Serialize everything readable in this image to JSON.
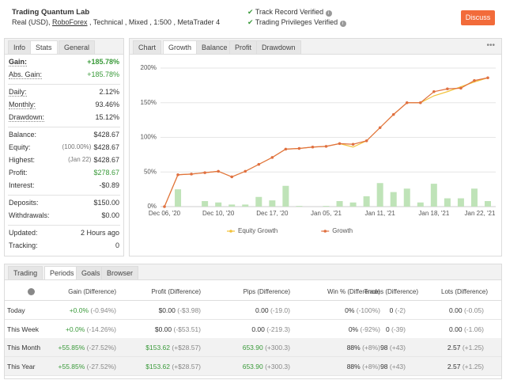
{
  "header": {
    "title": "Trading Quantum Lab",
    "subtitle_parts": [
      "Real (USD), ",
      "RoboForex",
      " , Technical , Mixed , 1:500 , MetaTrader 4"
    ],
    "verified": [
      "Track Record Verified",
      "Trading Privileges Verified"
    ],
    "button": "Discuss"
  },
  "stats_panel": {
    "tabs": [
      "Info",
      "Stats",
      "General"
    ],
    "active_tab": 1,
    "groups": [
      [
        {
          "label": "Gain:",
          "value": "+185.78%",
          "color": "#3a9a3a",
          "bold": true
        },
        {
          "label": "Abs. Gain:",
          "value": "+185.78%",
          "color": "#3a9a3a"
        }
      ],
      [
        {
          "label": "Daily:",
          "value": "2.12%"
        },
        {
          "label": "Monthly:",
          "value": "93.46%"
        },
        {
          "label": "Drawdown:",
          "value": "15.12%"
        }
      ],
      [
        {
          "label": "Balance:",
          "value": "$428.67"
        },
        {
          "label": "Equity:",
          "note": "(100.00%)",
          "value": "$428.67"
        },
        {
          "label": "Highest:",
          "note": "(Jan 22)",
          "value": "$428.67"
        },
        {
          "label": "Profit:",
          "value": "$278.67",
          "color": "#3a9a3a"
        },
        {
          "label": "Interest:",
          "value": "-$0.89"
        }
      ],
      [
        {
          "label": "Deposits:",
          "value": "$150.00"
        },
        {
          "label": "Withdrawals:",
          "value": "$0.00"
        }
      ],
      [
        {
          "label": "Updated:",
          "value": "2 Hours ago"
        },
        {
          "label": "Tracking:",
          "value": "0"
        }
      ]
    ]
  },
  "chart_panel": {
    "tabs": [
      "Chart",
      "Growth",
      "Balance",
      "Profit",
      "Drawdown"
    ],
    "active_tab": 1
  },
  "chart": {
    "type": "line",
    "categories": [
      "Dec 06, '20",
      null,
      null,
      null,
      "Dec 10, '20",
      null,
      null,
      null,
      "Dec 17, '20",
      null,
      null,
      null,
      "Jan 05, '21",
      null,
      null,
      null,
      "Jan 11, '21",
      null,
      null,
      null,
      "Jan 18, '21",
      null,
      null,
      null,
      "Jan 22, '21"
    ],
    "series": [
      {
        "name": "Equity Growth",
        "color": "#f2c23a",
        "values": [
          0,
          46,
          47,
          49,
          51,
          43,
          51,
          61,
          71,
          83,
          84,
          86,
          87,
          91,
          86,
          95,
          114,
          133,
          150,
          150,
          160,
          166,
          173,
          180,
          186
        ]
      },
      {
        "name": "Growth",
        "color": "#e07040",
        "values": [
          0,
          46,
          47,
          49,
          51,
          43,
          51,
          61,
          71,
          83,
          84,
          86,
          87,
          91,
          90,
          95,
          114,
          133,
          150,
          150,
          166,
          170,
          171,
          182,
          186
        ]
      }
    ],
    "bars": {
      "color": "#bfe3b8",
      "values": [
        0,
        25,
        0,
        8,
        6,
        3,
        3,
        14,
        9,
        30,
        1,
        0,
        1,
        8,
        6,
        15,
        34,
        21,
        26,
        6,
        33,
        12,
        12,
        26,
        8
      ]
    },
    "ylim": [
      0,
      200
    ],
    "yticks": [
      {
        "value": 0,
        "label": "0%"
      },
      {
        "value": 50,
        "label": "50%"
      },
      {
        "value": 100,
        "label": "100%"
      },
      {
        "value": 150,
        "label": "150%"
      },
      {
        "value": 200,
        "label": "200%"
      }
    ],
    "grid": true
  },
  "table": {
    "tabs": [
      "Trading",
      "Periods",
      "Goals",
      "Browser"
    ],
    "active_tab": 1,
    "columns": [
      "Gain (Difference)",
      "Profit (Difference)",
      "Pips (Difference)",
      "Win % (Difference)",
      "Trades (Difference)",
      "Lots (Difference)"
    ],
    "rows": [
      {
        "label": "Today",
        "cells": [
          [
            "+0.0%",
            "(-0.94%)"
          ],
          [
            "$0.00",
            "(-$3.98)"
          ],
          [
            "0.00",
            "(-19.0)"
          ],
          [
            "0%",
            "(-100%)"
          ],
          [
            "0",
            "(-2)"
          ],
          [
            "0.00",
            "(-0.05)"
          ]
        ]
      },
      {
        "label": "This Week",
        "cells": [
          [
            "+0.0%",
            "(-14.26%)"
          ],
          [
            "$0.00",
            "(-$53.51)"
          ],
          [
            "0.00",
            "(-219.3)"
          ],
          [
            "0%",
            "(-92%)"
          ],
          [
            "0",
            "(-39)"
          ],
          [
            "0.00",
            "(-1.06)"
          ]
        ]
      },
      {
        "label": "This Month",
        "shaded": true,
        "cells": [
          [
            "+55.85%",
            "(-27.52%)"
          ],
          [
            "$153.62",
            "(+$28.57)"
          ],
          [
            "653.90",
            "(+300.3)"
          ],
          [
            "88%",
            "(+8%)"
          ],
          [
            "98",
            "(+43)"
          ],
          [
            "2.57",
            "(+1.25)"
          ]
        ]
      },
      {
        "label": "This Year",
        "shaded": true,
        "cells": [
          [
            "+55.85%",
            "(-27.52%)"
          ],
          [
            "$153.62",
            "(+$28.57)"
          ],
          [
            "653.90",
            "(+300.3)"
          ],
          [
            "88%",
            "(+8%)"
          ],
          [
            "98",
            "(+43)"
          ],
          [
            "2.57",
            "(+1.25)"
          ]
        ]
      }
    ],
    "green_columns": [
      0,
      1,
      2
    ]
  }
}
